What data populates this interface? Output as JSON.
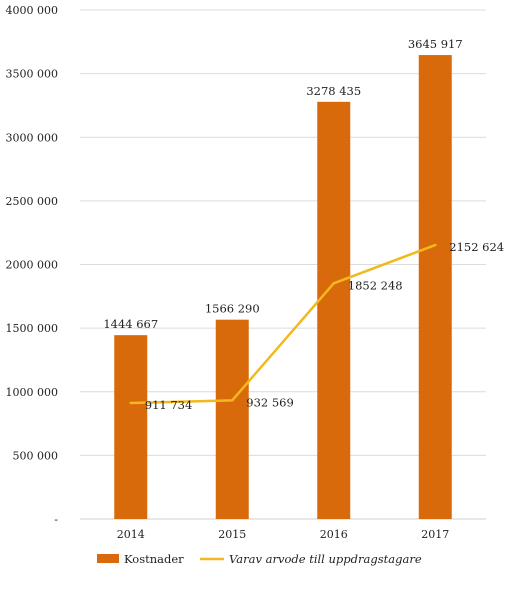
{
  "chart_data": {
    "type": "bar",
    "categories": [
      "2014",
      "2015",
      "2016",
      "2017"
    ],
    "series": [
      {
        "name": "Kostnader",
        "kind": "bar",
        "values": [
          1444667,
          1566290,
          3278435,
          3645917
        ],
        "labels": [
          "1444 667",
          "1566 290",
          "3278 435",
          "3645 917"
        ],
        "color": "#D96A0B"
      },
      {
        "name": "Varav arvode till uppdragstagare",
        "kind": "line",
        "values": [
          911734,
          932569,
          1852248,
          2152624
        ],
        "labels": [
          "911 734",
          "932 569",
          "1852 248",
          "2152 624"
        ],
        "color": "#F2B81D"
      }
    ],
    "y_ticks": [
      0,
      500000,
      1000000,
      1500000,
      2000000,
      2500000,
      3000000,
      3500000,
      4000000
    ],
    "y_tick_labels": [
      "-",
      "500 000",
      "1000 000",
      "1500 000",
      "2000 000",
      "2500 000",
      "3000 000",
      "3500 000",
      "4000 000"
    ],
    "ylim": [
      0,
      4000000
    ],
    "grid": true,
    "legend_position": "bottom-left",
    "title": "",
    "xlabel": "",
    "ylabel": ""
  }
}
